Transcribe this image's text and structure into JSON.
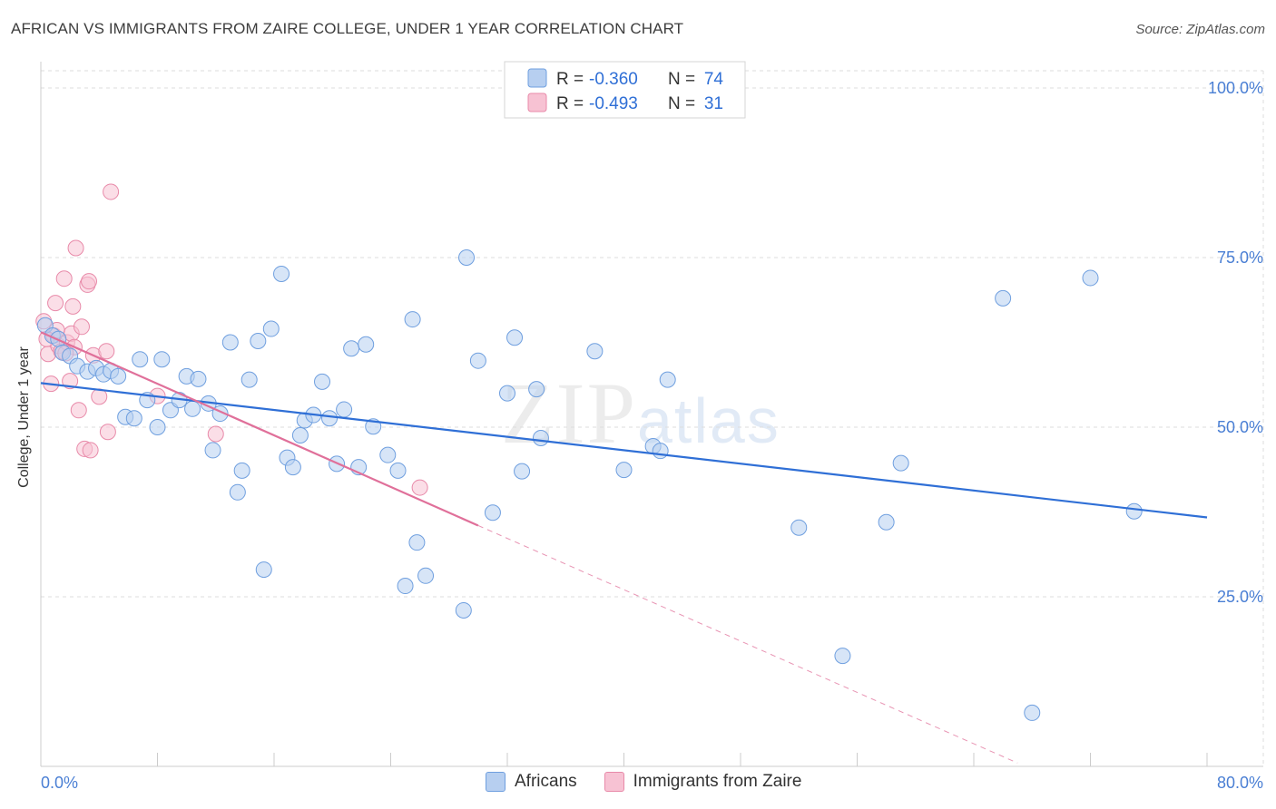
{
  "title": "AFRICAN VS IMMIGRANTS FROM ZAIRE COLLEGE, UNDER 1 YEAR CORRELATION CHART",
  "source": "Source: ZipAtlas.com",
  "watermark": {
    "zip": "ZIP",
    "atlas": "atlas"
  },
  "legend_box": {
    "rows": [
      {
        "r_label": "R =",
        "r_value": "-0.360",
        "n_label": "N =",
        "n_value": "74"
      },
      {
        "r_label": "R =",
        "r_value": "-0.493",
        "n_label": "N =",
        "n_value": "31"
      }
    ]
  },
  "bottom_legend": {
    "items": [
      {
        "label": "Africans"
      },
      {
        "label": "Immigrants from Zaire"
      }
    ]
  },
  "colors": {
    "africans_fill": "#b7cff0",
    "africans_stroke": "#6f9fdf",
    "africans_line": "#2f6fd6",
    "zaire_fill": "#f7c2d3",
    "zaire_stroke": "#e88aa9",
    "zaire_line": "#e0709a",
    "grid": "#dddddd",
    "axis_label": "#4a7fd4"
  },
  "chart_data": {
    "type": "scatter",
    "title": "AFRICAN VS IMMIGRANTS FROM ZAIRE COLLEGE, UNDER 1 YEAR CORRELATION CHART",
    "xlabel": "",
    "ylabel": "College, Under 1 year",
    "xlim": [
      0,
      80
    ],
    "ylim": [
      0,
      100
    ],
    "x_tick_labels": [
      "0.0%",
      "80.0%"
    ],
    "y_tick_labels": [
      "100.0%",
      "75.0%",
      "50.0%",
      "25.0%"
    ],
    "y_ticks": [
      100,
      75,
      50,
      25
    ],
    "grid": true,
    "legend_placement": "top-center",
    "series": [
      {
        "name": "Africans",
        "R": -0.36,
        "N": 74,
        "trend": {
          "x": [
            0,
            80
          ],
          "y": [
            56.5,
            36.7
          ]
        },
        "points": [
          [
            0.3,
            65.0
          ],
          [
            0.8,
            63.5
          ],
          [
            1.2,
            63.0
          ],
          [
            1.5,
            61.0
          ],
          [
            2.0,
            60.5
          ],
          [
            2.5,
            59.0
          ],
          [
            3.2,
            58.2
          ],
          [
            3.8,
            58.7
          ],
          [
            4.3,
            57.8
          ],
          [
            4.8,
            58.3
          ],
          [
            5.3,
            57.5
          ],
          [
            5.8,
            51.5
          ],
          [
            6.4,
            51.3
          ],
          [
            6.8,
            60.0
          ],
          [
            7.3,
            54.0
          ],
          [
            8.0,
            50.0
          ],
          [
            8.3,
            60.0
          ],
          [
            8.9,
            52.5
          ],
          [
            9.5,
            54.0
          ],
          [
            10.0,
            57.5
          ],
          [
            10.4,
            52.7
          ],
          [
            10.8,
            57.1
          ],
          [
            11.5,
            53.5
          ],
          [
            11.8,
            46.6
          ],
          [
            12.3,
            52.0
          ],
          [
            13.0,
            62.5
          ],
          [
            13.5,
            40.4
          ],
          [
            13.8,
            43.6
          ],
          [
            14.3,
            57.0
          ],
          [
            14.9,
            62.7
          ],
          [
            15.3,
            29.0
          ],
          [
            15.8,
            64.5
          ],
          [
            16.5,
            72.6
          ],
          [
            16.9,
            45.5
          ],
          [
            17.3,
            44.1
          ],
          [
            17.8,
            48.8
          ],
          [
            18.1,
            51.0
          ],
          [
            18.7,
            51.8
          ],
          [
            19.3,
            56.7
          ],
          [
            19.8,
            51.3
          ],
          [
            20.3,
            44.6
          ],
          [
            20.8,
            52.6
          ],
          [
            21.3,
            61.6
          ],
          [
            21.8,
            44.1
          ],
          [
            22.3,
            62.2
          ],
          [
            22.8,
            50.1
          ],
          [
            23.8,
            45.9
          ],
          [
            24.5,
            43.6
          ],
          [
            25.0,
            26.6
          ],
          [
            25.5,
            65.9
          ],
          [
            25.8,
            33.0
          ],
          [
            26.4,
            28.1
          ],
          [
            29.0,
            23.0
          ],
          [
            29.2,
            75.0
          ],
          [
            30.0,
            59.8
          ],
          [
            31.0,
            37.4
          ],
          [
            32.0,
            55.0
          ],
          [
            32.5,
            63.2
          ],
          [
            33.0,
            43.5
          ],
          [
            34.0,
            55.6
          ],
          [
            34.3,
            48.4
          ],
          [
            38.0,
            61.2
          ],
          [
            40.0,
            43.7
          ],
          [
            42.0,
            47.2
          ],
          [
            42.5,
            46.5
          ],
          [
            43.0,
            57.0
          ],
          [
            52.0,
            35.2
          ],
          [
            55.0,
            16.3
          ],
          [
            58.0,
            36.0
          ],
          [
            59.0,
            44.7
          ],
          [
            66.0,
            69.0
          ],
          [
            68.0,
            7.9
          ],
          [
            72.0,
            72.0
          ],
          [
            75.0,
            37.6
          ]
        ]
      },
      {
        "name": "Immigrants from Zaire",
        "R": -0.493,
        "N": 31,
        "trend": {
          "x": [
            0,
            30
          ],
          "y": [
            64.0,
            35.5
          ]
        },
        "trend_dashed": {
          "x": [
            30,
            67
          ],
          "y": [
            35.5,
            0.5
          ]
        },
        "points": [
          [
            0.2,
            65.6
          ],
          [
            0.5,
            60.8
          ],
          [
            0.7,
            56.4
          ],
          [
            0.9,
            63.5
          ],
          [
            1.0,
            68.3
          ],
          [
            1.2,
            62.0
          ],
          [
            1.4,
            61.2
          ],
          [
            1.6,
            71.9
          ],
          [
            1.8,
            62.5
          ],
          [
            2.0,
            56.8
          ],
          [
            2.1,
            63.8
          ],
          [
            2.2,
            67.8
          ],
          [
            2.3,
            61.8
          ],
          [
            2.4,
            76.4
          ],
          [
            2.6,
            52.5
          ],
          [
            2.8,
            64.8
          ],
          [
            3.0,
            46.8
          ],
          [
            3.2,
            71.0
          ],
          [
            3.3,
            71.5
          ],
          [
            3.4,
            46.6
          ],
          [
            3.6,
            60.6
          ],
          [
            4.0,
            54.5
          ],
          [
            4.5,
            61.2
          ],
          [
            4.6,
            49.3
          ],
          [
            4.8,
            84.7
          ],
          [
            8.0,
            54.6
          ],
          [
            12.0,
            49.0
          ],
          [
            26.0,
            41.1
          ],
          [
            1.1,
            64.3
          ],
          [
            0.4,
            63.0
          ],
          [
            1.7,
            60.9
          ]
        ]
      }
    ]
  }
}
